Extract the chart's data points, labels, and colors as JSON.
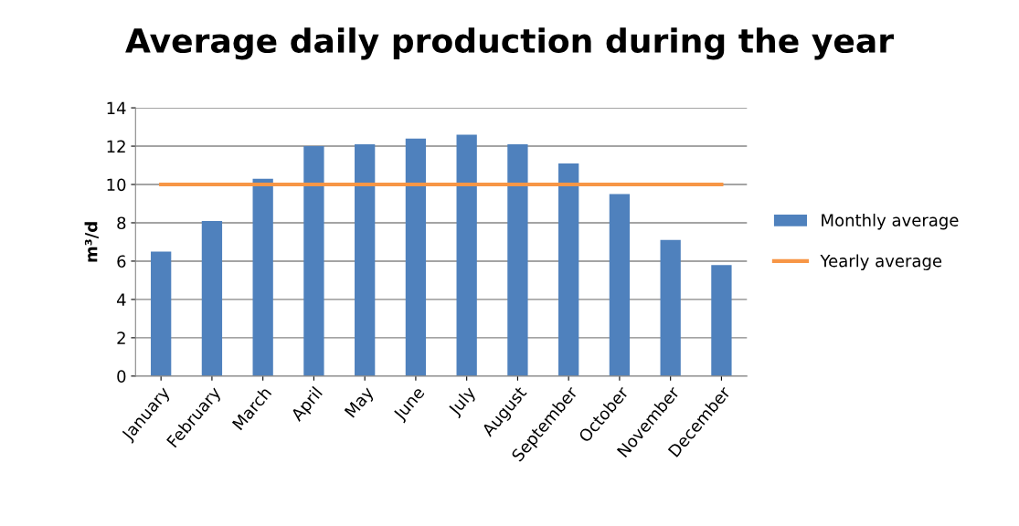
{
  "chart_data": {
    "type": "bar",
    "title": "Average daily production during the year",
    "ylabel": "m³/d",
    "categories": [
      "January",
      "February",
      "March",
      "April",
      "May",
      "June",
      "July",
      "August",
      "September",
      "October",
      "November",
      "December"
    ],
    "series": [
      {
        "name": "Monthly average",
        "color": "#4f81bd",
        "values": [
          6.5,
          8.1,
          10.3,
          12.0,
          12.1,
          12.4,
          12.6,
          12.1,
          11.1,
          9.5,
          7.1,
          5.8
        ]
      },
      {
        "name": "Yearly average",
        "type": "line",
        "color": "#f79646",
        "values": [
          10,
          10,
          10,
          10,
          10,
          10,
          10,
          10,
          10,
          10,
          10,
          10
        ]
      }
    ],
    "ylim": [
      0,
      14
    ],
    "yticks": [
      0,
      2,
      4,
      6,
      8,
      10,
      12,
      14
    ],
    "grid": "y",
    "legend": "right",
    "marker": "none"
  }
}
